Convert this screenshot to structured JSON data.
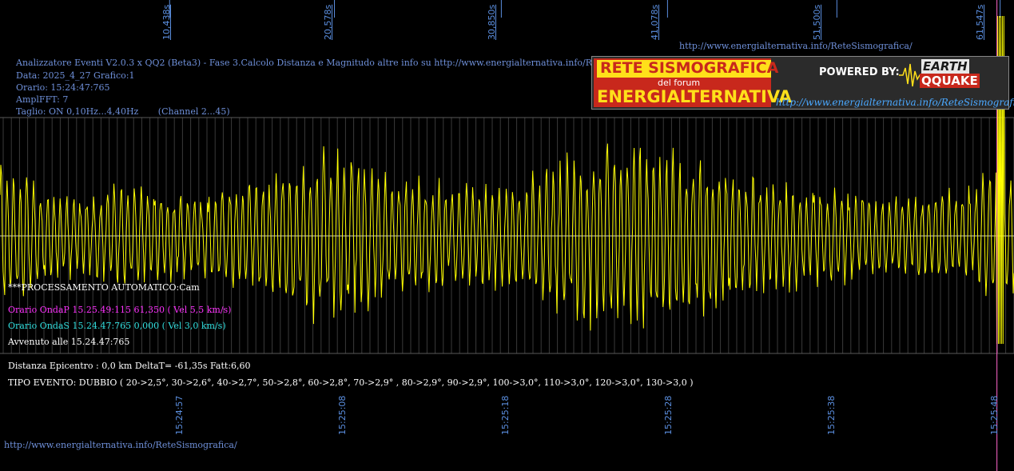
{
  "header": {
    "title_line": "Analizzatore Eventi V2.0.3 x QQ2 (Beta3) - Fase 3.Calcolo Distanza e Magnitudo altre info su http://www.energialternativa.info/ReteSism",
    "data_line": "Data: 2025_4_27 Grafico:1",
    "orario_line": "Orario: 15:24:47:765",
    "ampl_line": "AmplFFT: 7",
    "taglio_line": "Taglio: ON 0,10Hz...4,40Hz       (Channel 2...45)"
  },
  "top_url": "http://www.energialternativa.info/ReteSismografica/",
  "bottom_url": "http://www.energialternativa.info/ReteSismografica/",
  "logo": {
    "line1": "RETE SISMOGRAFICA",
    "line2": "del forum",
    "line3": "ENERGIALTERNATIVA",
    "powered": "POWERED BY:",
    "brand_top": "EARTH",
    "brand_bottom": "QQUAKE",
    "url": "http://www.energialternativa.info/ReteSismografica"
  },
  "processing": {
    "auto_line": "***PROCESSAMENTO AUTOMATICO:Cam",
    "onda_p": "Orario OndaP 15.25.49:115  61,350 ( Vel 5,5 km/s)",
    "onda_s": "Orario OndaS 15.24.47:765  0,000 ( Vel 3,0 km/s)",
    "avvenuto": "Avvenuto alle 15.24.47:765"
  },
  "results": {
    "distanza": "Distanza Epicentro : 0,0 km DeltaT= -61,35s  Fatt:6,60",
    "tipo_evento": "TIPO EVENTO: DUBBIO ( 20->2,5°, 30->2,6°, 40->2,7°, 50->2,8°, 60->2,8°, 70->2,9° , 80->2,9°, 90->2,9°, 100->3,0°, 110->3,0°, 120->3,0°, 130->3,0 )"
  },
  "colors": {
    "trace": "#ffff00",
    "grid": "#3a3a3a",
    "marker": "#ff66cc",
    "label": "#5b8fe0"
  },
  "chart_data": {
    "type": "line",
    "title": "",
    "xlabel": "",
    "ylabel": "",
    "top_ticks": [
      "10,438s",
      "20,578s",
      "30,850s",
      "41,078s",
      "51,500s",
      "61,547s"
    ],
    "bottom_ticks": [
      "15:24:57",
      "15:25:08",
      "15:25:18",
      "15:25:28",
      "15:25:38",
      "15:25:48"
    ],
    "xlim_s": [
      0,
      62.4
    ],
    "marker_s": 61.35,
    "grid": true,
    "series": [
      {
        "name": "",
        "amplitude_envelope": [
          {
            "t": 0,
            "amp": 0.85
          },
          {
            "t": 4,
            "amp": 0.45
          },
          {
            "t": 8,
            "amp": 0.55
          },
          {
            "t": 12,
            "amp": 0.45
          },
          {
            "t": 16,
            "amp": 0.65
          },
          {
            "t": 20,
            "amp": 0.95
          },
          {
            "t": 24,
            "amp": 0.7
          },
          {
            "t": 28,
            "amp": 0.55
          },
          {
            "t": 32,
            "amp": 0.6
          },
          {
            "t": 36,
            "amp": 1.0
          },
          {
            "t": 40,
            "amp": 0.95
          },
          {
            "t": 44,
            "amp": 0.8
          },
          {
            "t": 48,
            "amp": 0.6
          },
          {
            "t": 52,
            "amp": 0.5
          },
          {
            "t": 56,
            "amp": 0.45
          },
          {
            "t": 60,
            "amp": 0.55
          },
          {
            "t": 61.5,
            "amp": 1.0
          },
          {
            "t": 62.4,
            "amp": 0.6
          }
        ]
      }
    ]
  }
}
